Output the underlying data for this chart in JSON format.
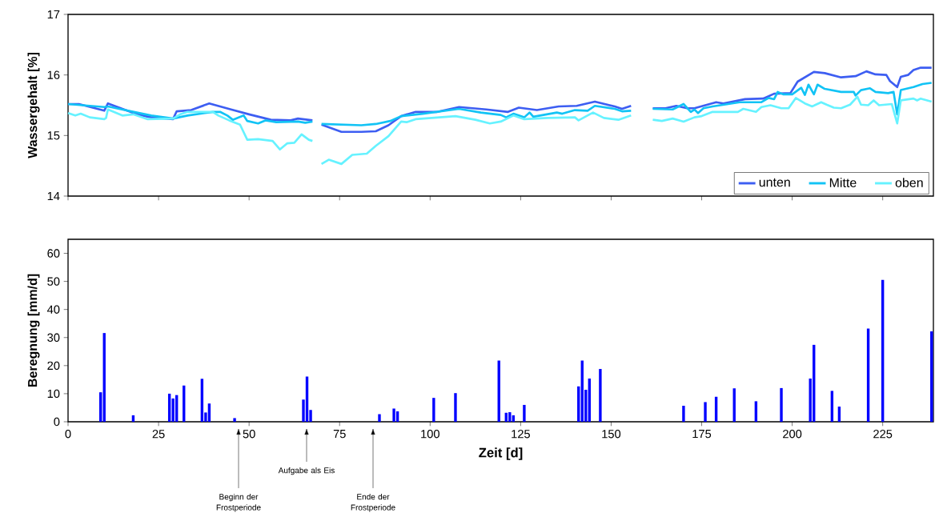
{
  "chart_data": [
    {
      "type": "line",
      "ylabel": "Wassergehalt [%]",
      "xlim": [
        0,
        239
      ],
      "xticks": [
        0,
        25,
        50,
        75,
        100,
        125,
        150,
        175,
        200,
        225
      ],
      "ylim": [
        14,
        17
      ],
      "yticks": [
        14,
        15,
        16,
        17
      ],
      "tick_labels": "y",
      "legend": "bottom right",
      "series": [
        {
          "name": "unten",
          "color": "#3d5ef2",
          "x": [
            0,
            3,
            10,
            11,
            19,
            23,
            29,
            30,
            34,
            39,
            45,
            50,
            56,
            61.5,
            63.5,
            67.5,
            69,
            70,
            75.5,
            81,
            85,
            88.5,
            92,
            96,
            102,
            108,
            115.5,
            121.5,
            124.5,
            129.5,
            135.5,
            140.5,
            145.5,
            151,
            153,
            155.5,
            159,
            161.5,
            165,
            168,
            171,
            173,
            179,
            181,
            187,
            192,
            195,
            199.5,
            201.5,
            206,
            209,
            213.5,
            217.5,
            220.5,
            223,
            226,
            227,
            229,
            230,
            232,
            233.5,
            235.5,
            238.5
          ],
          "values": [
            15.52,
            15.52,
            15.41,
            15.53,
            15.35,
            15.3,
            15.27,
            15.4,
            15.42,
            15.53,
            15.43,
            15.35,
            15.26,
            15.25,
            15.28,
            15.25,
            null,
            15.18,
            15.06,
            15.06,
            15.07,
            15.17,
            15.32,
            15.39,
            15.39,
            15.47,
            15.43,
            15.39,
            15.46,
            15.42,
            15.48,
            15.49,
            15.56,
            15.48,
            15.44,
            15.49,
            null,
            15.45,
            15.45,
            15.49,
            15.45,
            15.45,
            15.55,
            15.53,
            15.6,
            15.61,
            15.69,
            15.7,
            15.89,
            16.05,
            16.03,
            15.96,
            15.98,
            16.06,
            16.01,
            16.0,
            15.9,
            15.8,
            15.97,
            16.0,
            16.08,
            16.12,
            16.12
          ]
        },
        {
          "name": "Mitte",
          "color": "#12c3f5",
          "x": [
            0,
            10,
            11,
            19,
            23,
            29,
            33,
            40,
            42,
            44,
            45.5,
            48.5,
            49.5,
            52.5,
            54.5,
            57.5,
            63.5,
            65.5,
            67.5,
            69,
            70,
            81,
            85,
            89,
            92,
            98,
            108,
            114,
            119.5,
            121,
            123,
            126,
            127.5,
            128.5,
            135,
            136.5,
            140,
            143.5,
            145.5,
            151,
            153,
            155.5,
            159,
            161.5,
            167,
            170,
            172,
            173,
            174,
            175.5,
            178,
            185.5,
            191.5,
            193.5,
            195,
            196,
            197.5,
            200,
            202.5,
            203.5,
            204.5,
            206,
            207,
            209,
            213.5,
            217,
            217.5,
            219,
            221.5,
            223,
            226.5,
            228,
            229,
            230,
            233.5,
            236,
            238.5
          ],
          "values": [
            15.52,
            15.47,
            15.48,
            15.38,
            15.33,
            15.28,
            15.33,
            15.39,
            15.39,
            15.33,
            15.26,
            15.33,
            15.24,
            15.2,
            15.25,
            15.22,
            15.23,
            15.21,
            15.23,
            null,
            15.19,
            15.17,
            15.19,
            15.24,
            15.32,
            15.36,
            15.44,
            15.38,
            15.34,
            15.3,
            15.36,
            15.3,
            15.38,
            15.31,
            15.38,
            15.36,
            15.42,
            15.41,
            15.49,
            15.44,
            15.4,
            15.41,
            null,
            15.44,
            15.43,
            15.52,
            15.39,
            15.43,
            15.37,
            15.45,
            15.48,
            15.55,
            15.55,
            15.62,
            15.6,
            15.72,
            15.68,
            15.68,
            15.79,
            15.67,
            15.84,
            15.68,
            15.84,
            15.77,
            15.72,
            15.72,
            15.66,
            15.75,
            15.78,
            15.72,
            15.7,
            15.72,
            15.35,
            15.75,
            15.8,
            15.85,
            15.87
          ]
        },
        {
          "name": "oben",
          "color": "#66f2ff",
          "x": [
            0,
            2,
            3.5,
            6,
            10,
            10.5,
            11,
            15,
            18,
            22,
            29,
            31,
            33,
            40,
            41.5,
            44.5,
            47.5,
            49.5,
            52.5,
            56.5,
            58.5,
            60.5,
            62.5,
            64.5,
            66.5,
            67.5,
            69,
            70,
            72,
            75.5,
            78.5,
            82.5,
            85,
            88.5,
            92,
            93.5,
            96,
            107,
            112.5,
            116.5,
            119.5,
            123,
            126,
            132.5,
            140,
            141,
            145,
            148,
            152,
            155.5,
            159,
            161.5,
            164,
            167,
            170,
            173,
            175,
            178,
            185,
            186.5,
            190,
            191.5,
            194,
            197,
            199,
            201,
            203.5,
            205.5,
            208,
            209.5,
            211.5,
            213.5,
            216,
            218,
            219,
            221,
            222.5,
            224,
            227.5,
            229,
            230,
            233.5,
            234.5,
            235.5,
            238.5
          ],
          "values": [
            15.37,
            15.33,
            15.36,
            15.3,
            15.27,
            15.29,
            15.43,
            15.33,
            15.35,
            15.27,
            15.28,
            15.35,
            15.39,
            15.39,
            15.33,
            15.25,
            15.18,
            14.93,
            14.94,
            14.91,
            14.77,
            14.87,
            14.88,
            15.02,
            14.93,
            14.91,
            null,
            14.53,
            14.6,
            14.53,
            14.68,
            14.7,
            14.83,
            14.99,
            15.23,
            15.22,
            15.27,
            15.32,
            15.26,
            15.2,
            15.23,
            15.33,
            15.27,
            15.29,
            15.3,
            15.25,
            15.38,
            15.29,
            15.26,
            15.33,
            null,
            15.26,
            15.24,
            15.28,
            15.23,
            15.3,
            15.32,
            15.39,
            15.39,
            15.44,
            15.39,
            15.47,
            15.5,
            15.45,
            15.45,
            15.62,
            15.53,
            15.48,
            15.55,
            15.51,
            15.46,
            15.45,
            15.51,
            15.64,
            15.51,
            15.5,
            15.58,
            15.5,
            15.52,
            15.2,
            15.58,
            15.61,
            15.58,
            15.61,
            15.56
          ]
        }
      ]
    },
    {
      "type": "bar",
      "ylabel": "Beregnung [mm/d]",
      "xlabel": "Zeit [d]",
      "xlim": [
        0,
        239
      ],
      "xticks": [
        0,
        25,
        50,
        75,
        100,
        125,
        150,
        175,
        200,
        225
      ],
      "ylim": [
        0,
        65
      ],
      "yticks": [
        0,
        10,
        20,
        30,
        40,
        50,
        60
      ],
      "color": "#0000ff",
      "x": [
        9,
        10,
        18,
        28,
        29,
        30,
        32,
        37,
        38,
        39,
        46,
        65,
        66,
        67,
        86,
        90,
        91,
        101,
        107,
        119,
        121,
        122,
        123,
        126,
        141,
        142,
        143,
        144,
        147,
        170,
        176,
        179,
        184,
        190,
        197,
        205,
        206,
        211,
        213,
        221,
        225,
        238.5
      ],
      "values": [
        10.5,
        31.6,
        2.3,
        10.0,
        8.3,
        9.5,
        12.9,
        15.3,
        3.3,
        6.5,
        1.3,
        7.9,
        16.1,
        4.2,
        2.7,
        4.7,
        3.7,
        8.5,
        10.2,
        21.8,
        3.2,
        3.4,
        2.3,
        6.0,
        12.6,
        21.8,
        11.4,
        15.4,
        18.8,
        5.7,
        7.0,
        8.9,
        11.9,
        7.3,
        12.0,
        15.4,
        27.4,
        11.0,
        5.4,
        33.2,
        50.5,
        32.2
      ],
      "annotations": [
        "Beginn der Frostperiode",
        "Aufgabe als Eis",
        "Ende der Frostperiode"
      ]
    }
  ]
}
